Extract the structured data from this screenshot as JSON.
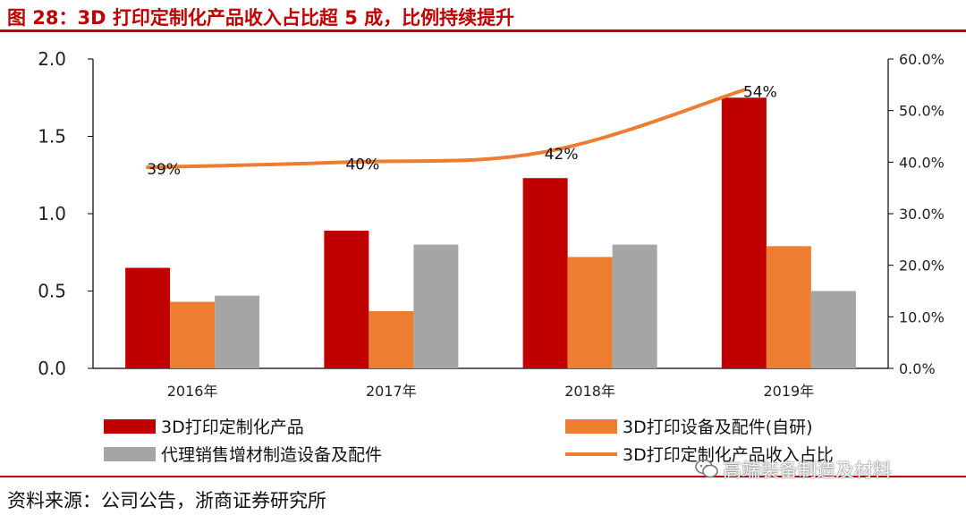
{
  "header": {
    "title": "图 28：3D 打印定制化产品收入占比超 5 成，比例持续提升"
  },
  "footer": {
    "source": "资料来源：公司公告，浙商证券研究所"
  },
  "watermark": {
    "text": "高端装备制造及材料",
    "icon": "wechat-icon"
  },
  "colors": {
    "red": "#c00000",
    "orange": "#ed7d31",
    "gray": "#a5a5a5",
    "line": "#ed7d31",
    "accent": "#c00000"
  },
  "chart_data": {
    "type": "bar",
    "categories": [
      "2016年",
      "2017年",
      "2018年",
      "2019年"
    ],
    "series": [
      {
        "name": "3D打印定制化产品",
        "values": [
          0.65,
          0.89,
          1.23,
          1.75
        ],
        "color": "#c00000"
      },
      {
        "name": "3D打印设备及配件(自研)",
        "values": [
          0.43,
          0.37,
          0.72,
          0.79
        ],
        "color": "#ed7d31"
      },
      {
        "name": "代理销售增材制造设备及配件",
        "values": [
          0.47,
          0.8,
          0.8,
          0.5
        ],
        "color": "#a5a5a5"
      }
    ],
    "line_series": {
      "name": "3D打印定制化产品收入占比",
      "values": [
        39,
        40,
        42,
        54
      ],
      "labels": [
        "39%",
        "40%",
        "42%",
        "54%"
      ],
      "color": "#ed7d31",
      "axis": "right"
    },
    "ylim": [
      0,
      2
    ],
    "yticks": [
      "0.0",
      "0.5",
      "1.0",
      "1.5",
      "2.0"
    ],
    "y2lim": [
      0,
      60
    ],
    "y2ticks": [
      "0.0%",
      "10.0%",
      "20.0%",
      "30.0%",
      "40.0%",
      "50.0%",
      "60.0%"
    ],
    "legend": [
      "3D打印定制化产品",
      "3D打印设备及配件(自研)",
      "代理销售增材制造设备及配件",
      "3D打印定制化产品收入占比"
    ],
    "legend_position": "bottom"
  }
}
